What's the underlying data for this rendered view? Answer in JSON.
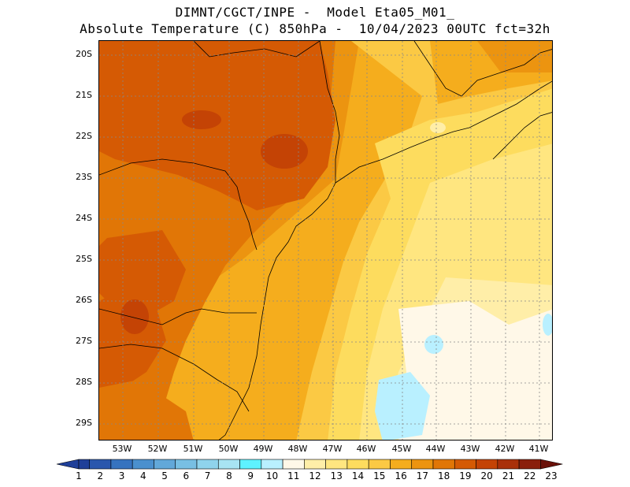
{
  "header": {
    "title_line1": "DIMNT/CGCT/INPE -  Model Eta05_M01_",
    "title_line2": "Absolute Temperature (C) 850hPa -  10/04/2023 00UTC fct=32h"
  },
  "map": {
    "lat_labels": [
      "20S",
      "21S",
      "22S",
      "23S",
      "24S",
      "25S",
      "26S",
      "27S",
      "28S",
      "29S"
    ],
    "lon_labels": [
      "53W",
      "52W",
      "51W",
      "50W",
      "49W",
      "48W",
      "47W",
      "46W",
      "45W",
      "44W",
      "43W",
      "42W",
      "41W"
    ],
    "gridlines": "dotted"
  },
  "colorbar": {
    "labels": [
      "1",
      "2",
      "3",
      "4",
      "5",
      "6",
      "7",
      "8",
      "9",
      "10",
      "11",
      "12",
      "13",
      "14",
      "15",
      "16",
      "17",
      "18",
      "19",
      "20",
      "21",
      "22",
      "23"
    ],
    "colors": [
      "#1f3f99",
      "#2a57ad",
      "#3673bf",
      "#4a90ce",
      "#62a8d9",
      "#78bfe3",
      "#8fd3ec",
      "#a8e4f3",
      "#5ef2ff",
      "#b9f0ff",
      "#fff8e8",
      "#ffeea8",
      "#ffe680",
      "#fddc5e",
      "#fbc944",
      "#f5ad1d",
      "#ec9410",
      "#e17606",
      "#d55a04",
      "#c44305",
      "#a9300a",
      "#8a1f0c",
      "#6a1008"
    ]
  }
}
